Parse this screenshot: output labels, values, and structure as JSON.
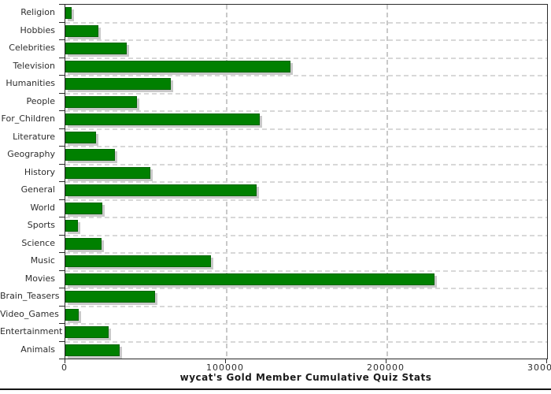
{
  "chart_data": {
    "type": "bar",
    "orientation": "horizontal",
    "title": "wycat's Gold Member Cumulative Quiz Stats",
    "categories": [
      "Religion",
      "Hobbies",
      "Celebrities",
      "Television",
      "Humanities",
      "People",
      "For_Children",
      "Literature",
      "Geography",
      "History",
      "General",
      "World",
      "Sports",
      "Science",
      "Music",
      "Movies",
      "Brain_Teasers",
      "Video_Games",
      "Entertainment",
      "Animals"
    ],
    "values": [
      4000,
      20500,
      38000,
      140000,
      65500,
      44500,
      121000,
      19000,
      31000,
      53000,
      119000,
      23000,
      8000,
      22500,
      90500,
      230000,
      56000,
      8500,
      27000,
      34000
    ],
    "xlabel": "",
    "ylabel": "",
    "xlim": [
      0,
      300000
    ],
    "x_ticks": [
      0,
      100000,
      200000,
      300000
    ],
    "grid": "dashed",
    "legend": "none",
    "bar_color": "#008000",
    "bar_outline_color": "#056405",
    "shadow_color": "#c9c9c9",
    "grid_color": "#d8d8d8",
    "axis_color": "#2b2b2b"
  }
}
